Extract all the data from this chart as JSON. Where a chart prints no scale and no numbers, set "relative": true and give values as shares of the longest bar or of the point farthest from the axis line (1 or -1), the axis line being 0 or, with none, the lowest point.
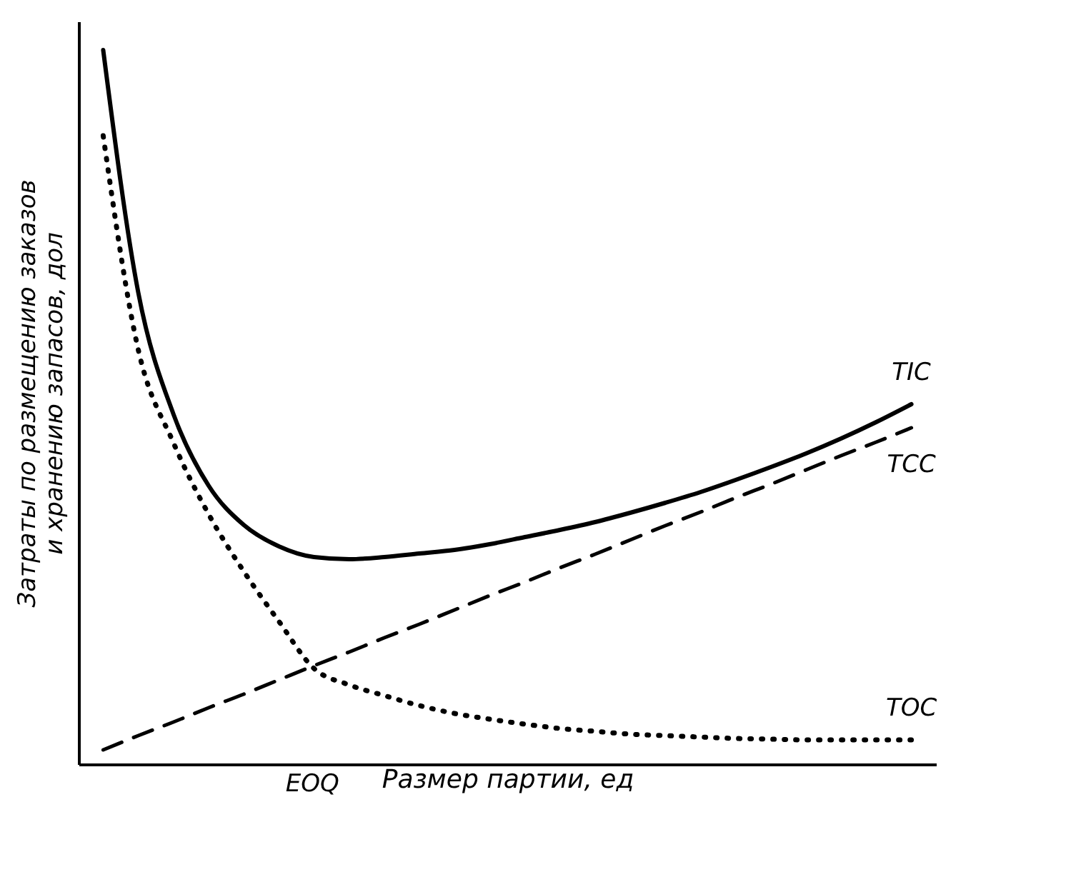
{
  "chart_data": {
    "type": "line",
    "relative": true,
    "xlabel": "Размер партии, ед",
    "ylabel": "Затраты по размещению заказов\nи хранению запасов, дол",
    "categories": [
      null,
      null,
      null,
      null,
      null,
      null,
      null,
      null,
      null,
      null,
      null,
      null,
      null,
      null,
      null,
      null,
      null,
      null,
      null,
      null,
      null,
      null,
      null,
      null
    ],
    "annotations": [
      "EOQ"
    ],
    "series": [
      {
        "name": "TIC",
        "color": "#000000",
        "line_style": "solid",
        "values": [
          1,
          0.66,
          0.49,
          0.39,
          0.335,
          0.305,
          0.29,
          0.287,
          0.29,
          0.295,
          0.3,
          0.308,
          0.318,
          0.328,
          0.339,
          0.352,
          0.366,
          0.381,
          0.398,
          0.416,
          0.435,
          0.456,
          0.479,
          0.504
        ]
      },
      {
        "name": "TCC",
        "color": "#000000",
        "line_style": "dashed",
        "values": [
          0.02,
          0.04,
          0.059,
          0.079,
          0.098,
          0.118,
          0.138,
          0.157,
          0.177,
          0.196,
          0.216,
          0.236,
          0.255,
          0.275,
          0.294,
          0.314,
          0.334,
          0.353,
          0.373,
          0.392,
          0.412,
          0.432,
          0.451,
          0.471
        ]
      },
      {
        "name": "TOC",
        "color": "#000000",
        "line_style": "dotted",
        "values": [
          0.88,
          0.58,
          0.45,
          0.35,
          0.27,
          0.2,
          0.134,
          0.111,
          0.096,
          0.082,
          0.071,
          0.063,
          0.056,
          0.05,
          0.046,
          0.042,
          0.04,
          0.038,
          0.036,
          0.035,
          0.034,
          0.034,
          0.034,
          0.034
        ]
      }
    ],
    "grid": false,
    "legend": false
  }
}
